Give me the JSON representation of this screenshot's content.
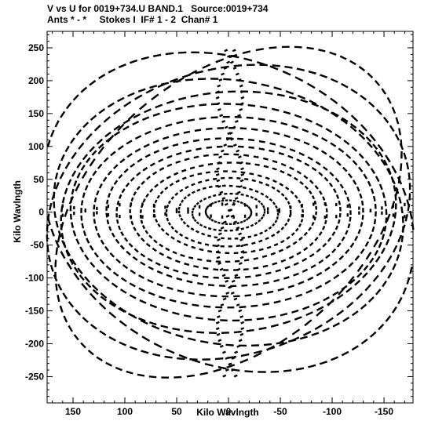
{
  "chart_data": {
    "type": "scatter",
    "title": "V vs U for 0019+734.U BAND.1   Source:0019+734",
    "subtitle": "Ants * - *     Stokes I  IF# 1 - 2  Chan# 1",
    "xlabel": "Kilo Wavlngth",
    "ylabel": "Kilo Wavlngth",
    "xlim": [
      175,
      -178
    ],
    "ylim": [
      -290,
      275
    ],
    "xticks": [
      150,
      100,
      50,
      0,
      -50,
      -100,
      -150
    ],
    "yticks": [
      250,
      200,
      150,
      100,
      50,
      0,
      -50,
      -100,
      -150,
      -200,
      -250
    ],
    "grid": false,
    "marker_color": "#000000",
    "series": [
      {
        "description": "uv-coverage tracks",
        "arcs": [
          {
            "rx": 22,
            "ry": 18,
            "rot": 5
          },
          {
            "rx": 35,
            "ry": 28,
            "rot": -8
          },
          {
            "rx": 48,
            "ry": 40,
            "rot": 10
          },
          {
            "rx": 60,
            "ry": 52,
            "rot": -5
          },
          {
            "rx": 72,
            "ry": 62,
            "rot": 8
          },
          {
            "rx": 85,
            "ry": 75,
            "rot": -10
          },
          {
            "rx": 95,
            "ry": 88,
            "rot": 6
          },
          {
            "rx": 108,
            "ry": 100,
            "rot": -6
          },
          {
            "rx": 118,
            "ry": 112,
            "rot": 12
          },
          {
            "rx": 130,
            "ry": 128,
            "rot": -12
          },
          {
            "rx": 142,
            "ry": 145,
            "rot": 9
          },
          {
            "rx": 152,
            "ry": 165,
            "rot": -9
          },
          {
            "rx": 160,
            "ry": 185,
            "rot": 14
          },
          {
            "rx": 166,
            "ry": 205,
            "rot": -14
          },
          {
            "rx": 170,
            "ry": 228,
            "rot": 16
          },
          {
            "rx": 172,
            "ry": 248,
            "rot": -16
          },
          {
            "rx": 150,
            "ry": 262,
            "rot": 20
          }
        ]
      }
    ]
  }
}
